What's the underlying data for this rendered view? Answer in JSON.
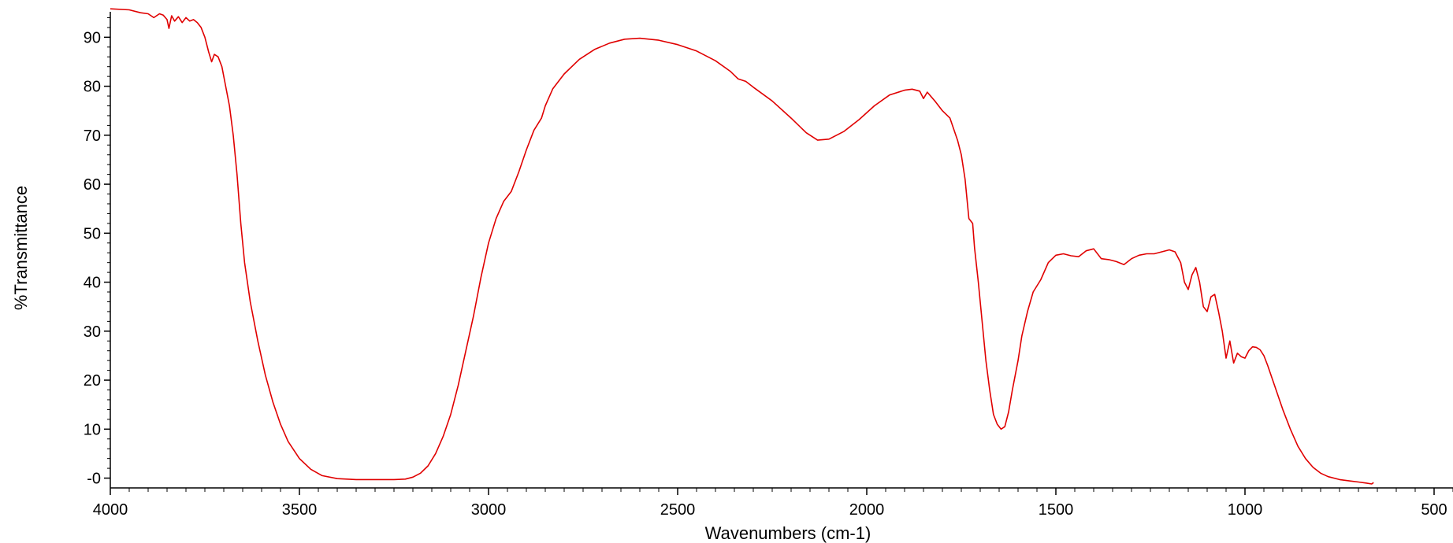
{
  "chart_data": {
    "type": "line",
    "title": "",
    "xlabel": "Wavenumbers (cm-1)",
    "ylabel": "%Transmittance",
    "xlim": [
      4000,
      450
    ],
    "x_reversed": true,
    "ylim": [
      -2,
      96
    ],
    "x_ticks": [
      4000,
      3500,
      3000,
      2500,
      2000,
      1500,
      1000,
      500
    ],
    "y_ticks": [
      0,
      10,
      20,
      30,
      40,
      50,
      60,
      70,
      80,
      90
    ],
    "y_tick_labels": [
      "-0",
      "10",
      "20",
      "30",
      "40",
      "50",
      "60",
      "70",
      "80",
      "90"
    ],
    "grid": false,
    "legend": "none",
    "line_color": "#e00000",
    "series": [
      {
        "points": [
          [
            4000,
            95.8
          ],
          [
            3950,
            95.6
          ],
          [
            3920,
            95.0
          ],
          [
            3900,
            94.8
          ],
          [
            3885,
            94.0
          ],
          [
            3870,
            94.8
          ],
          [
            3860,
            94.5
          ],
          [
            3850,
            93.6
          ],
          [
            3845,
            91.8
          ],
          [
            3838,
            94.4
          ],
          [
            3830,
            93.3
          ],
          [
            3820,
            94.2
          ],
          [
            3810,
            93.0
          ],
          [
            3800,
            94.0
          ],
          [
            3790,
            93.3
          ],
          [
            3780,
            93.6
          ],
          [
            3770,
            93.0
          ],
          [
            3760,
            92.0
          ],
          [
            3750,
            90.0
          ],
          [
            3740,
            87.0
          ],
          [
            3732,
            85.0
          ],
          [
            3725,
            86.5
          ],
          [
            3715,
            86.0
          ],
          [
            3705,
            84.0
          ],
          [
            3695,
            80.0
          ],
          [
            3685,
            76.0
          ],
          [
            3675,
            70.0
          ],
          [
            3665,
            62.0
          ],
          [
            3655,
            52.0
          ],
          [
            3645,
            44.0
          ],
          [
            3630,
            36.0
          ],
          [
            3610,
            28.0
          ],
          [
            3590,
            21.0
          ],
          [
            3570,
            15.5
          ],
          [
            3550,
            11.0
          ],
          [
            3530,
            7.5
          ],
          [
            3500,
            4.0
          ],
          [
            3470,
            1.8
          ],
          [
            3440,
            0.5
          ],
          [
            3400,
            -0.1
          ],
          [
            3350,
            -0.3
          ],
          [
            3300,
            -0.3
          ],
          [
            3250,
            -0.3
          ],
          [
            3220,
            -0.2
          ],
          [
            3200,
            0.2
          ],
          [
            3180,
            1.0
          ],
          [
            3160,
            2.5
          ],
          [
            3140,
            5.0
          ],
          [
            3120,
            8.5
          ],
          [
            3100,
            13.0
          ],
          [
            3080,
            19.0
          ],
          [
            3060,
            26.0
          ],
          [
            3040,
            33.0
          ],
          [
            3020,
            41.0
          ],
          [
            3000,
            48.0
          ],
          [
            2980,
            53.0
          ],
          [
            2960,
            56.5
          ],
          [
            2940,
            58.5
          ],
          [
            2920,
            62.5
          ],
          [
            2900,
            67.0
          ],
          [
            2880,
            71.0
          ],
          [
            2860,
            73.5
          ],
          [
            2850,
            76.0
          ],
          [
            2830,
            79.5
          ],
          [
            2800,
            82.5
          ],
          [
            2760,
            85.5
          ],
          [
            2720,
            87.5
          ],
          [
            2680,
            88.8
          ],
          [
            2640,
            89.6
          ],
          [
            2600,
            89.8
          ],
          [
            2550,
            89.4
          ],
          [
            2500,
            88.5
          ],
          [
            2450,
            87.2
          ],
          [
            2400,
            85.2
          ],
          [
            2360,
            83.0
          ],
          [
            2340,
            81.5
          ],
          [
            2320,
            81.0
          ],
          [
            2300,
            79.8
          ],
          [
            2250,
            77.0
          ],
          [
            2200,
            73.5
          ],
          [
            2160,
            70.5
          ],
          [
            2130,
            69.0
          ],
          [
            2100,
            69.2
          ],
          [
            2060,
            70.8
          ],
          [
            2020,
            73.2
          ],
          [
            1980,
            76.0
          ],
          [
            1940,
            78.2
          ],
          [
            1900,
            79.2
          ],
          [
            1880,
            79.4
          ],
          [
            1860,
            79.0
          ],
          [
            1850,
            77.5
          ],
          [
            1840,
            78.8
          ],
          [
            1820,
            77.0
          ],
          [
            1800,
            75.0
          ],
          [
            1780,
            73.5
          ],
          [
            1760,
            69.0
          ],
          [
            1750,
            66.0
          ],
          [
            1740,
            61.0
          ],
          [
            1735,
            57.0
          ],
          [
            1730,
            53.0
          ],
          [
            1720,
            52.0
          ],
          [
            1715,
            47.0
          ],
          [
            1705,
            40.0
          ],
          [
            1695,
            32.0
          ],
          [
            1685,
            24.0
          ],
          [
            1675,
            18.0
          ],
          [
            1665,
            13.0
          ],
          [
            1655,
            11.0
          ],
          [
            1645,
            10.0
          ],
          [
            1635,
            10.5
          ],
          [
            1625,
            13.5
          ],
          [
            1615,
            18.0
          ],
          [
            1600,
            24.0
          ],
          [
            1590,
            29.0
          ],
          [
            1575,
            34.0
          ],
          [
            1560,
            38.0
          ],
          [
            1540,
            40.5
          ],
          [
            1520,
            44.0
          ],
          [
            1500,
            45.5
          ],
          [
            1480,
            45.8
          ],
          [
            1460,
            45.4
          ],
          [
            1440,
            45.2
          ],
          [
            1420,
            46.4
          ],
          [
            1400,
            46.8
          ],
          [
            1380,
            44.8
          ],
          [
            1360,
            44.6
          ],
          [
            1340,
            44.2
          ],
          [
            1320,
            43.6
          ],
          [
            1300,
            44.8
          ],
          [
            1280,
            45.5
          ],
          [
            1260,
            45.8
          ],
          [
            1240,
            45.8
          ],
          [
            1220,
            46.2
          ],
          [
            1200,
            46.6
          ],
          [
            1185,
            46.2
          ],
          [
            1170,
            44.0
          ],
          [
            1160,
            40.0
          ],
          [
            1150,
            38.5
          ],
          [
            1140,
            41.5
          ],
          [
            1130,
            43.0
          ],
          [
            1120,
            40.0
          ],
          [
            1110,
            35.0
          ],
          [
            1100,
            34.0
          ],
          [
            1090,
            37.0
          ],
          [
            1080,
            37.5
          ],
          [
            1070,
            34.0
          ],
          [
            1060,
            30.0
          ],
          [
            1050,
            24.5
          ],
          [
            1040,
            28.0
          ],
          [
            1030,
            23.5
          ],
          [
            1020,
            25.5
          ],
          [
            1010,
            24.8
          ],
          [
            1000,
            24.5
          ],
          [
            990,
            26.0
          ],
          [
            980,
            26.8
          ],
          [
            970,
            26.7
          ],
          [
            960,
            26.2
          ],
          [
            950,
            25.0
          ],
          [
            940,
            23.0
          ],
          [
            920,
            18.5
          ],
          [
            900,
            14.0
          ],
          [
            880,
            10.0
          ],
          [
            860,
            6.5
          ],
          [
            840,
            4.0
          ],
          [
            820,
            2.2
          ],
          [
            800,
            1.0
          ],
          [
            780,
            0.3
          ],
          [
            750,
            -0.3
          ],
          [
            720,
            -0.6
          ],
          [
            700,
            -0.8
          ],
          [
            680,
            -1.0
          ],
          [
            665,
            -1.2
          ],
          [
            660,
            -0.9
          ]
        ]
      }
    ]
  }
}
